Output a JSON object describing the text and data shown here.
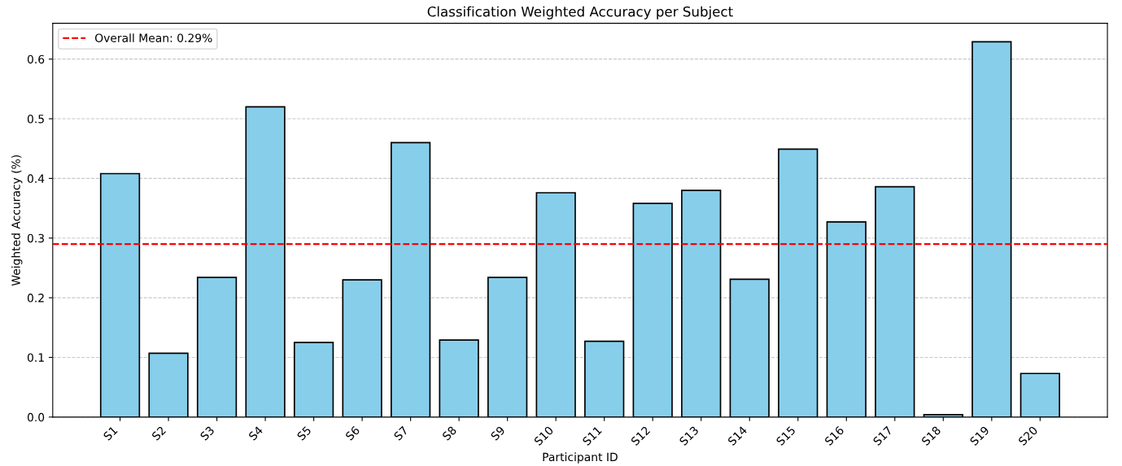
{
  "chart_data": {
    "type": "bar",
    "title": "Classification Weighted Accuracy per Subject",
    "xlabel": "Participant ID",
    "ylabel": "Weighted Accuracy (%)",
    "categories": [
      "S1",
      "S2",
      "S3",
      "S4",
      "S5",
      "S6",
      "S7",
      "S8",
      "S9",
      "S10",
      "S11",
      "S12",
      "S13",
      "S14",
      "S15",
      "S16",
      "S17",
      "S18",
      "S19",
      "S20"
    ],
    "values": [
      0.408,
      0.107,
      0.234,
      0.52,
      0.125,
      0.23,
      0.46,
      0.129,
      0.234,
      0.376,
      0.127,
      0.358,
      0.38,
      0.231,
      0.449,
      0.327,
      0.386,
      0.004,
      0.629,
      0.073
    ],
    "color": "#87ceeb",
    "ylim": [
      0,
      0.66
    ],
    "yticks": [
      {
        "value": 0,
        "label": "0.0"
      },
      0.1,
      0.2,
      0.3,
      0.4,
      0.5,
      0.6
    ],
    "ref_lines": [
      {
        "axis": "y",
        "value": 0.29,
        "label": "Overall Mean: 0.29%",
        "color": "#ff0000",
        "line_style": "dashed"
      }
    ],
    "grid": "y",
    "legend": "top left"
  }
}
